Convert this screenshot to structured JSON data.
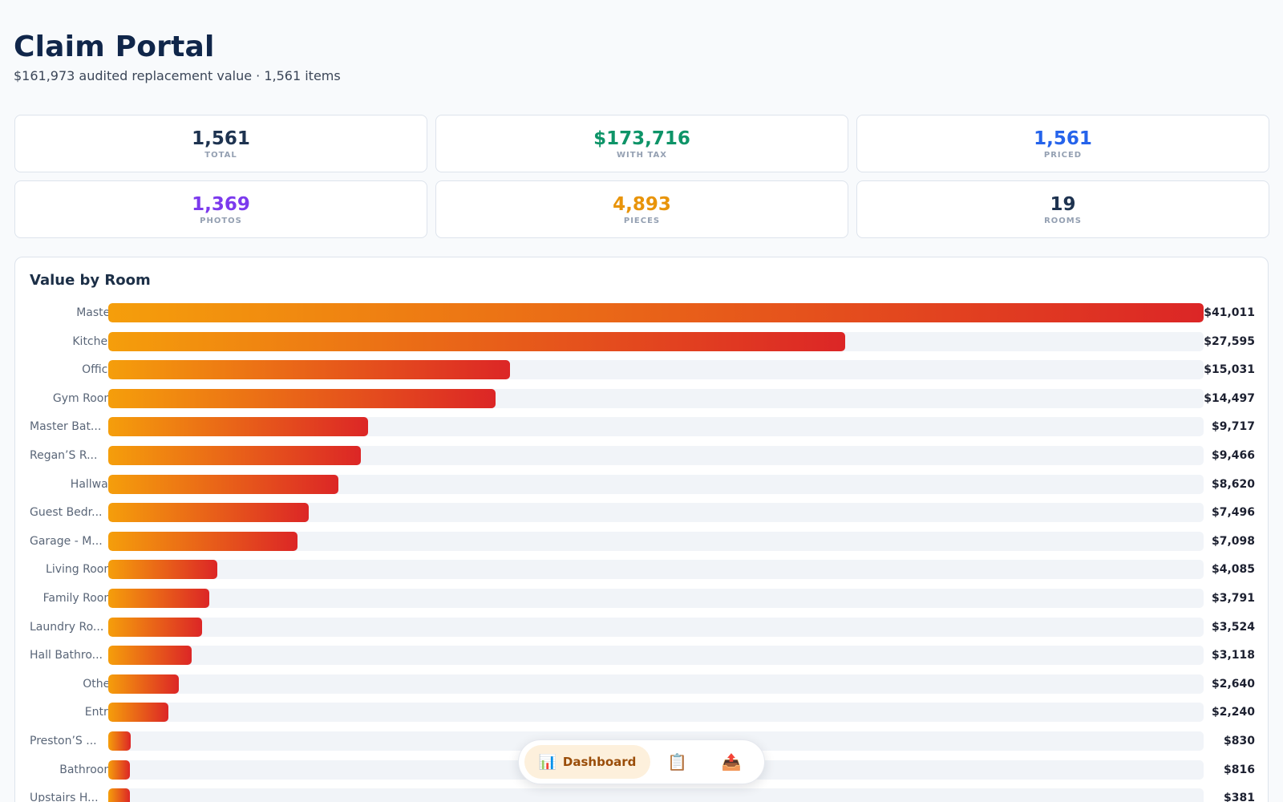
{
  "header": {
    "title": "Claim Portal",
    "subtitle": "$161,973 audited replacement value · 1,561 items"
  },
  "stats": [
    {
      "value": "1,561",
      "label": "TOTAL",
      "color": "#1e3350"
    },
    {
      "value": "$173,716",
      "label": "WITH TAX",
      "color": "#0e9468"
    },
    {
      "value": "1,561",
      "label": "PRICED",
      "color": "#2563eb"
    },
    {
      "value": "1,369",
      "label": "PHOTOS",
      "color": "#7c3aed"
    },
    {
      "value": "4,893",
      "label": "PIECES",
      "color": "#e8940a"
    },
    {
      "value": "19",
      "label": "ROOMS",
      "color": "#1e3350"
    }
  ],
  "chart_card": {
    "title": "Value by Room"
  },
  "chart_data": {
    "type": "bar",
    "orientation": "horizontal",
    "title": "Value by Room",
    "categories": [
      "Master",
      "Kitchen",
      "Office",
      "Gym Room",
      "Master Bat...",
      "Regan’S R...",
      "Hallway",
      "Guest Bedr...",
      "Garage - M...",
      "Living Room",
      "Family Room",
      "Laundry Ro...",
      "Hall Bathro...",
      "Other",
      "Entry",
      "Preston’S ...",
      "Bathroom",
      "Upstairs H..."
    ],
    "values": [
      41011,
      27595,
      15031,
      14497,
      9717,
      9466,
      8620,
      7496,
      7098,
      4085,
      3791,
      3524,
      3118,
      2640,
      2240,
      830,
      816,
      381
    ],
    "value_labels": [
      "$41,011",
      "$27,595",
      "$15,031",
      "$14,497",
      "$9,717",
      "$9,466",
      "$8,620",
      "$7,496",
      "$7,098",
      "$4,085",
      "$3,791",
      "$3,524",
      "$3,118",
      "$2,640",
      "$2,240",
      "$830",
      "$816",
      "$381"
    ],
    "xlim": [
      0,
      41011
    ],
    "colors": {
      "start": "#f59e0b",
      "end": "#dc2626",
      "track": "#f1f4f8"
    }
  },
  "bottom_nav": {
    "tabs": [
      {
        "label": "Dashboard",
        "icon": "📊",
        "icon_name": "chart-icon",
        "active": true
      },
      {
        "label": "",
        "icon": "📋",
        "icon_name": "clipboard-icon",
        "active": false
      },
      {
        "label": "",
        "icon": "📤",
        "icon_name": "export-icon",
        "active": false
      }
    ]
  }
}
